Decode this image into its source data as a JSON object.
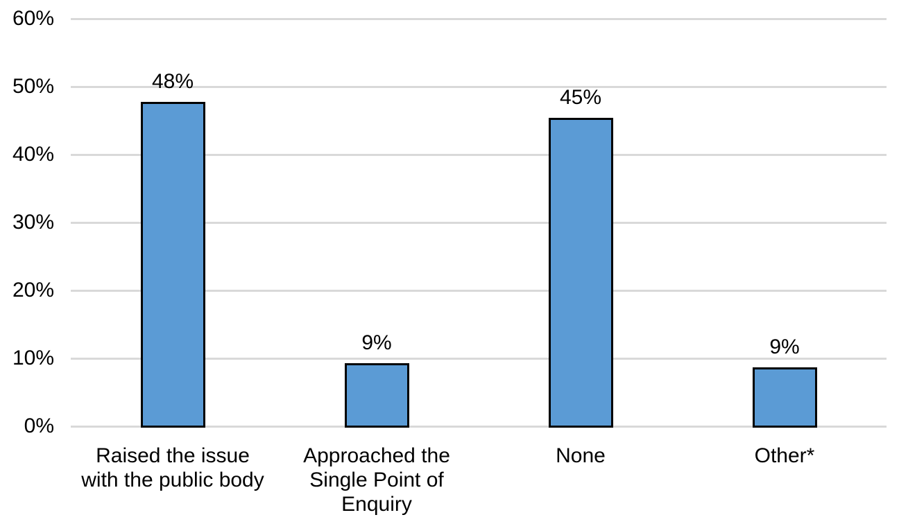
{
  "chart_data": {
    "type": "bar",
    "categories": [
      "Raised the issue with the public body",
      "Approached the Single Point of Enquiry",
      "None",
      "Other*"
    ],
    "category_lines": [
      [
        "Raised the issue",
        "with the public body"
      ],
      [
        "Approached the",
        "Single Point of",
        "Enquiry"
      ],
      [
        "None"
      ],
      [
        "Other*"
      ]
    ],
    "values": [
      48,
      9,
      45,
      9
    ],
    "values_precise": [
      47.8,
      9.3,
      45.4,
      8.7
    ],
    "data_labels": [
      "48%",
      "9%",
      "45%",
      "9%"
    ],
    "y_tick_labels": [
      "60%",
      "50%",
      "40%",
      "30%",
      "20%",
      "10%",
      "0%"
    ],
    "ylim": [
      0,
      60
    ],
    "y_tick_step": 10,
    "grid": true,
    "legend_position": "none",
    "colors": {
      "bar_fill": "#5B9BD5",
      "bar_border": "#000000",
      "gridline": "#D9D9D9",
      "text": "#000000",
      "background": "#FFFFFF"
    }
  }
}
